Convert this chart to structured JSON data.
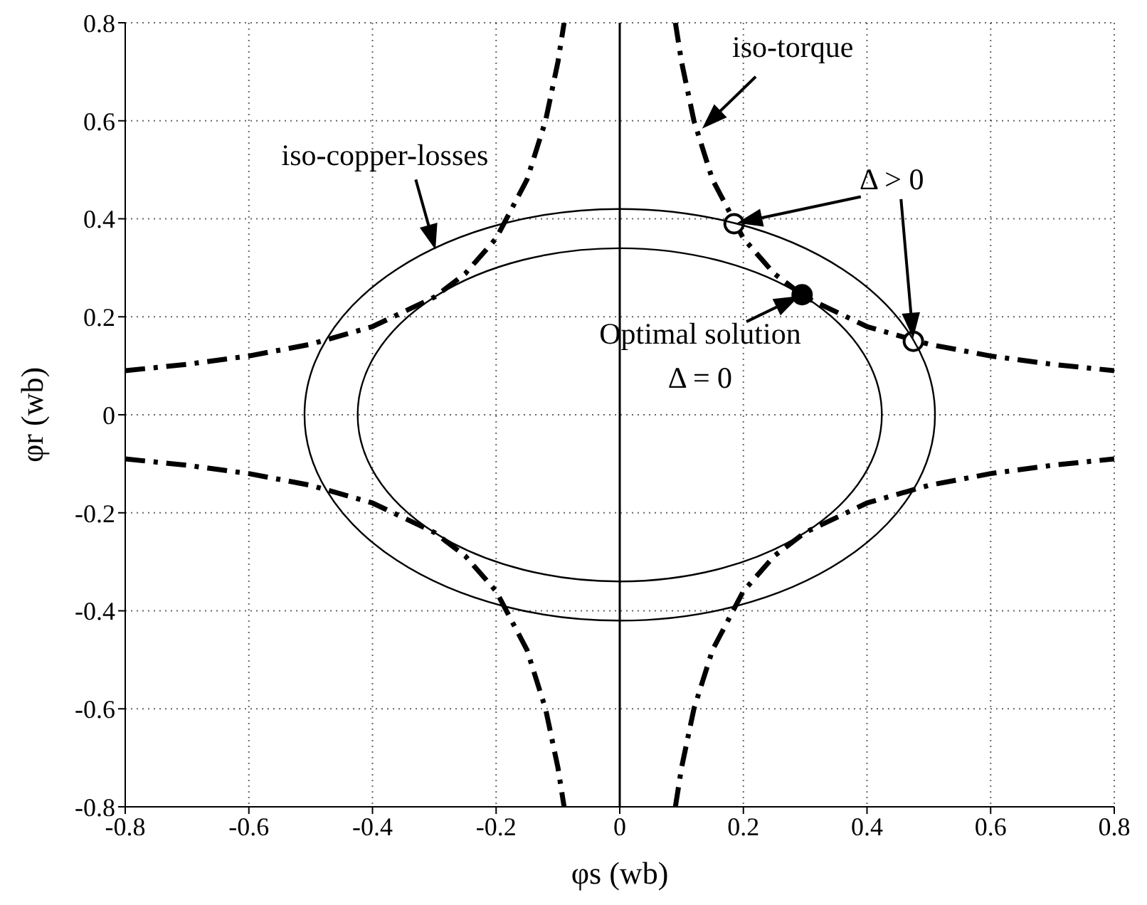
{
  "chart_data": {
    "type": "line",
    "xlabel": "φs (wb)",
    "ylabel": "φr (wb)",
    "xlim": [
      -0.8,
      0.8
    ],
    "ylim": [
      -0.8,
      0.8
    ],
    "xticks": [
      -0.8,
      -0.6,
      -0.4,
      -0.2,
      0,
      0.2,
      0.4,
      0.6,
      0.8
    ],
    "yticks": [
      -0.8,
      -0.6,
      -0.4,
      -0.2,
      0,
      0.2,
      0.4,
      0.6,
      0.8
    ],
    "grid": true,
    "marker": "none",
    "ref_lines": [
      {
        "axis": "x",
        "value": 0,
        "color": "#000000",
        "line_style": "solid"
      }
    ],
    "series": [
      {
        "color": "#000000",
        "line_style": "dashed",
        "x": [
          0.09,
          0.1,
          0.12,
          0.15,
          0.2,
          0.25,
          0.3,
          0.4,
          0.5,
          0.6,
          0.7,
          0.8
        ],
        "values": [
          0.8,
          0.72,
          0.6,
          0.48,
          0.36,
          0.288,
          0.24,
          0.18,
          0.144,
          0.12,
          0.103,
          0.09
        ]
      },
      {
        "color": "#000000",
        "line_style": "dashed",
        "x": [
          -0.8,
          -0.7,
          -0.6,
          -0.5,
          -0.4,
          -0.3,
          -0.25,
          -0.2,
          -0.15,
          -0.12,
          -0.1,
          -0.09
        ],
        "values": [
          0.09,
          0.103,
          0.12,
          0.144,
          0.18,
          0.24,
          0.288,
          0.36,
          0.48,
          0.6,
          0.72,
          0.8
        ]
      },
      {
        "color": "#000000",
        "line_style": "dashed",
        "x": [
          -0.8,
          -0.7,
          -0.6,
          -0.5,
          -0.4,
          -0.3,
          -0.25,
          -0.2,
          -0.15,
          -0.12,
          -0.1,
          -0.09
        ],
        "values": [
          -0.09,
          -0.103,
          -0.12,
          -0.144,
          -0.18,
          -0.24,
          -0.288,
          -0.36,
          -0.48,
          -0.6,
          -0.72,
          -0.8
        ]
      },
      {
        "color": "#000000",
        "line_style": "dashed",
        "x": [
          0.09,
          0.1,
          0.12,
          0.15,
          0.2,
          0.25,
          0.3,
          0.4,
          0.5,
          0.6,
          0.7,
          0.8
        ],
        "values": [
          -0.8,
          -0.72,
          -0.6,
          -0.48,
          -0.36,
          -0.288,
          -0.24,
          -0.18,
          -0.144,
          -0.12,
          -0.103,
          -0.09
        ]
      },
      {
        "type": "scatter",
        "marker": "circle",
        "color": "#ffffff",
        "x": [
          0.185,
          0.475
        ],
        "values": [
          0.39,
          0.15
        ]
      },
      {
        "type": "scatter",
        "marker": "circle",
        "color": "#000000",
        "x": [
          0.295
        ],
        "values": [
          0.245
        ]
      }
    ],
    "annotations": [
      {
        "text": "iso-torque",
        "x": 0.13,
        "y": 0.58
      },
      "iso-copper-losses",
      "Δ > 0",
      {
        "text": "Optimal solution",
        "x": 0.295,
        "y": 0.245
      },
      "Δ = 0"
    ]
  }
}
